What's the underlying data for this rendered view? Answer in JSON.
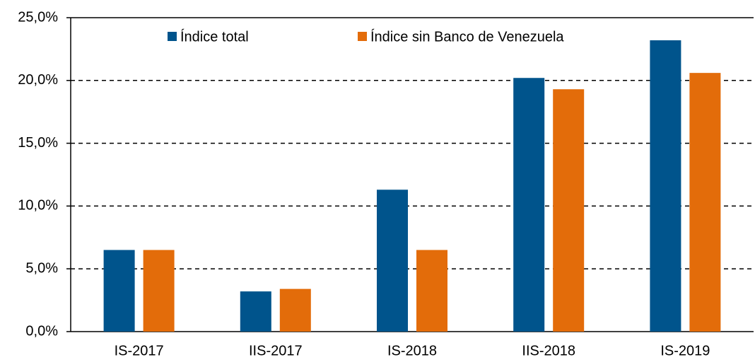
{
  "chart_data": {
    "type": "bar",
    "categories": [
      "IS-2017",
      "IIS-2017",
      "IS-2018",
      "IIS-2018",
      "IS-2019"
    ],
    "series": [
      {
        "name": "Índice total",
        "color": "#00548c",
        "values": [
          6.5,
          3.2,
          11.3,
          20.2,
          23.2
        ]
      },
      {
        "name": "Índice sin Banco de Venezuela",
        "color": "#e36c0a",
        "values": [
          6.5,
          3.4,
          6.5,
          19.3,
          20.6
        ]
      }
    ],
    "ylim": [
      0,
      25
    ],
    "yticks": [
      {
        "value": 0,
        "label": "0,0%"
      },
      {
        "value": 5,
        "label": "5,0%"
      },
      {
        "value": 10,
        "label": "10,0%"
      },
      {
        "value": 15,
        "label": "15,0%"
      },
      {
        "value": 20,
        "label": "20,0%"
      },
      {
        "value": 25,
        "label": "25,0%"
      }
    ],
    "grid": true,
    "legend": "top"
  }
}
